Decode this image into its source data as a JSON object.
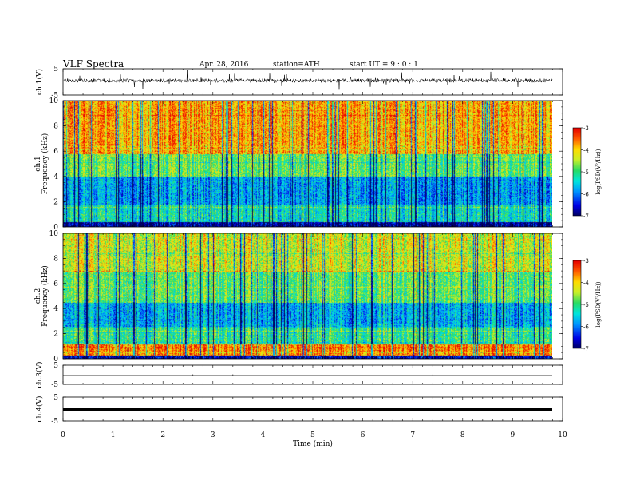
{
  "header": {
    "title": "VLF Spectra",
    "date": "Apr. 28, 2016",
    "station": "station=ATH",
    "start": "start UT =  9 : 0 : 1"
  },
  "chart_data": [
    {
      "type": "line",
      "panel": "ch1-waveform",
      "ylabel": "ch.1(V)",
      "ylim": [
        -5,
        5
      ],
      "yticks": [
        "5",
        "-5"
      ],
      "xlim": [
        0,
        10
      ],
      "baseline": 0.5,
      "noise_amplitude": 1.5,
      "series": [
        {
          "values": []
        }
      ]
    },
    {
      "type": "heatmap",
      "panel": "ch1-spectrogram",
      "ylabel": [
        "ch.1",
        "Frequency (kHz)"
      ],
      "ylim": [
        0,
        10
      ],
      "yticks": [
        "0",
        "2",
        "4",
        "6",
        "8",
        "10"
      ],
      "xlim": [
        0,
        10
      ],
      "colorbar": {
        "label": "log(PSD(V²/Hz))",
        "ticks": [
          "-3",
          "-4",
          "-5",
          "-6",
          "-7"
        ],
        "range": [
          -7,
          -3
        ]
      }
    },
    {
      "type": "heatmap",
      "panel": "ch2-spectrogram",
      "ylabel": [
        "ch.2",
        "Frequency (kHz)"
      ],
      "ylim": [
        0,
        10
      ],
      "yticks": [
        "0",
        "2",
        "4",
        "6",
        "8",
        "10"
      ],
      "xlim": [
        0,
        10
      ],
      "colorbar": {
        "label": "log(PSD(V²/Hz))",
        "ticks": [
          "-3",
          "-4",
          "-5",
          "-6",
          "-7"
        ],
        "range": [
          -7,
          -3
        ]
      }
    },
    {
      "type": "line",
      "panel": "ch3-waveform",
      "ylabel": "ch.3(V)",
      "ylim": [
        -5,
        5
      ],
      "yticks": [
        "5",
        "-5"
      ],
      "xlim": [
        0,
        10
      ],
      "baseline": 0
    },
    {
      "type": "line",
      "panel": "ch4-waveform",
      "ylabel": "ch.4(V)",
      "ylim": [
        -5,
        5
      ],
      "yticks": [
        "5",
        "-5"
      ],
      "xlim": [
        0,
        10
      ],
      "baseline": 0,
      "xlabel": "Time  (min)",
      "xticks": [
        "0",
        "1",
        "2",
        "3",
        "4",
        "5",
        "6",
        "7",
        "8",
        "9",
        "10"
      ]
    }
  ]
}
